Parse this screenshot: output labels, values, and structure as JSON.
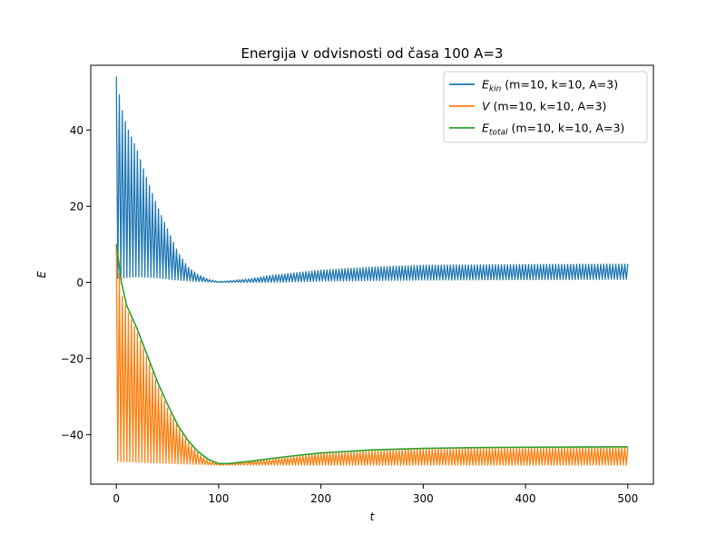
{
  "chart_data": {
    "type": "line",
    "title": "Energija v odvisnosti od časa 100 A=3",
    "xlabel": "t",
    "ylabel": "E",
    "xlim": [
      -25,
      525
    ],
    "ylim": [
      -53,
      57
    ],
    "x_ticks": [
      0,
      100,
      200,
      300,
      400,
      500
    ],
    "y_ticks": [
      -40,
      -20,
      0,
      20,
      40
    ],
    "grid": false,
    "legend_position": "top-right",
    "x_range": [
      0,
      500
    ],
    "series": [
      {
        "name": "E_kin (m=10, k=10, A=3)",
        "legend_symbol": "E",
        "legend_subscript": "kin",
        "legend_rest": " (m=10, k=10, A=3)",
        "color": "#1f77b4",
        "style": "oscillating",
        "envelope_top": [
          [
            0,
            54
          ],
          [
            5,
            46
          ],
          [
            10,
            41
          ],
          [
            20,
            35
          ],
          [
            30,
            27
          ],
          [
            40,
            20
          ],
          [
            50,
            14
          ],
          [
            60,
            8
          ],
          [
            70,
            4
          ],
          [
            80,
            2
          ],
          [
            90,
            0.8
          ],
          [
            100,
            0.2
          ],
          [
            110,
            0.4
          ],
          [
            130,
            0.9
          ],
          [
            150,
            1.8
          ],
          [
            200,
            3.2
          ],
          [
            250,
            4
          ],
          [
            300,
            4.5
          ],
          [
            400,
            4.7
          ],
          [
            500,
            4.8
          ]
        ],
        "envelope_bottom": [
          [
            0,
            1
          ],
          [
            20,
            1.5
          ],
          [
            40,
            1.2
          ],
          [
            60,
            0.6
          ],
          [
            80,
            0.2
          ],
          [
            100,
            0
          ],
          [
            150,
            0
          ],
          [
            200,
            0.3
          ],
          [
            300,
            0.6
          ],
          [
            400,
            0.7
          ],
          [
            500,
            0.8
          ]
        ]
      },
      {
        "name": "V (m=10, k=10, A=3)",
        "legend_symbol": "V",
        "legend_subscript": "",
        "legend_rest": " (m=10, k=10, A=3)",
        "color": "#ff7f0e",
        "style": "oscillating",
        "envelope_top": [
          [
            0,
            10
          ],
          [
            5,
            -3
          ],
          [
            10,
            -7
          ],
          [
            20,
            -13
          ],
          [
            30,
            -20
          ],
          [
            40,
            -27
          ],
          [
            50,
            -33
          ],
          [
            60,
            -38
          ],
          [
            70,
            -42
          ],
          [
            80,
            -45
          ],
          [
            90,
            -47
          ],
          [
            100,
            -47.6
          ],
          [
            110,
            -47.5
          ],
          [
            130,
            -47
          ],
          [
            150,
            -46.5
          ],
          [
            200,
            -45
          ],
          [
            250,
            -44.3
          ],
          [
            300,
            -43.8
          ],
          [
            400,
            -43.5
          ],
          [
            500,
            -43.3
          ]
        ],
        "envelope_bottom": [
          [
            0,
            -47
          ],
          [
            100,
            -48
          ],
          [
            200,
            -48
          ],
          [
            300,
            -48
          ],
          [
            400,
            -48
          ],
          [
            500,
            -48
          ]
        ]
      },
      {
        "name": "E_total (m=10, k=10, A=3)",
        "legend_symbol": "E",
        "legend_subscript": "total",
        "legend_rest": " (m=10, k=10, A=3)",
        "color": "#2ca02c",
        "style": "smooth",
        "points": [
          [
            0,
            10
          ],
          [
            5,
            0
          ],
          [
            10,
            -6
          ],
          [
            20,
            -12
          ],
          [
            30,
            -19
          ],
          [
            40,
            -26
          ],
          [
            50,
            -32
          ],
          [
            60,
            -37.5
          ],
          [
            70,
            -41.5
          ],
          [
            80,
            -44.5
          ],
          [
            90,
            -46.5
          ],
          [
            100,
            -47.6
          ],
          [
            110,
            -47.6
          ],
          [
            130,
            -47
          ],
          [
            150,
            -46.3
          ],
          [
            175,
            -45.5
          ],
          [
            200,
            -44.8
          ],
          [
            250,
            -44
          ],
          [
            300,
            -43.6
          ],
          [
            350,
            -43.4
          ],
          [
            400,
            -43.3
          ],
          [
            500,
            -43.2
          ]
        ]
      }
    ]
  }
}
